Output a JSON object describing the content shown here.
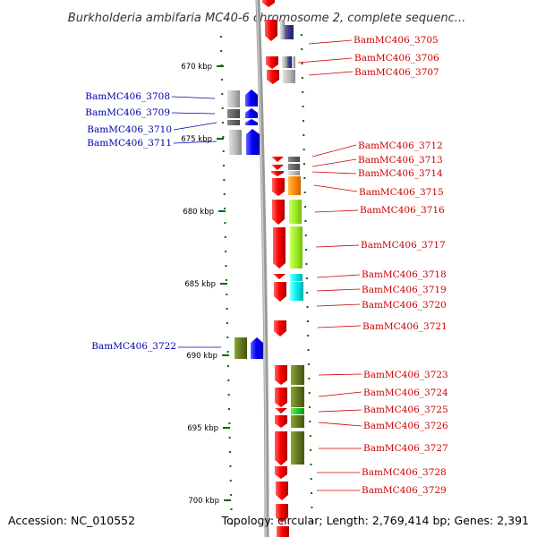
{
  "title": "Burkholderia ambifaria MC40-6 chromosome 2, complete sequenc...",
  "accession": "Accession: NC_010552",
  "topology": "Topology: circular; Length: 2,769,414 bp; Genes: 2,391",
  "scale_labels": [
    "670 kbp",
    "675 kbp",
    "680 kbp",
    "685 kbp",
    "690 kbp",
    "695 kbp",
    "700 kbp"
  ],
  "genes_right": [
    {
      "name": "BamMC406_3705"
    },
    {
      "name": "BamMC406_3706"
    },
    {
      "name": "BamMC406_3707"
    },
    {
      "name": "BamMC406_3712"
    },
    {
      "name": "BamMC406_3713"
    },
    {
      "name": "BamMC406_3714"
    },
    {
      "name": "BamMC406_3715"
    },
    {
      "name": "BamMC406_3716"
    },
    {
      "name": "BamMC406_3717"
    },
    {
      "name": "BamMC406_3718"
    },
    {
      "name": "BamMC406_3719"
    },
    {
      "name": "BamMC406_3720"
    },
    {
      "name": "BamMC406_3721"
    },
    {
      "name": "BamMC406_3723"
    },
    {
      "name": "BamMC406_3724"
    },
    {
      "name": "BamMC406_3725"
    },
    {
      "name": "BamMC406_3726"
    },
    {
      "name": "BamMC406_3727"
    },
    {
      "name": "BamMC406_3728"
    },
    {
      "name": "BamMC406_3729"
    }
  ],
  "genes_left": [
    {
      "name": "BamMC406_3708"
    },
    {
      "name": "BamMC406_3709"
    },
    {
      "name": "BamMC406_3710"
    },
    {
      "name": "BamMC406_3711"
    },
    {
      "name": "BamMC406_3722"
    }
  ],
  "colors": {
    "forward_gene": "#ff0000",
    "reverse_gene": "#0000ff",
    "backbone": "#888888",
    "scale_tick": "#006600",
    "label_right": "#cc0000",
    "label_left": "#0000aa"
  }
}
